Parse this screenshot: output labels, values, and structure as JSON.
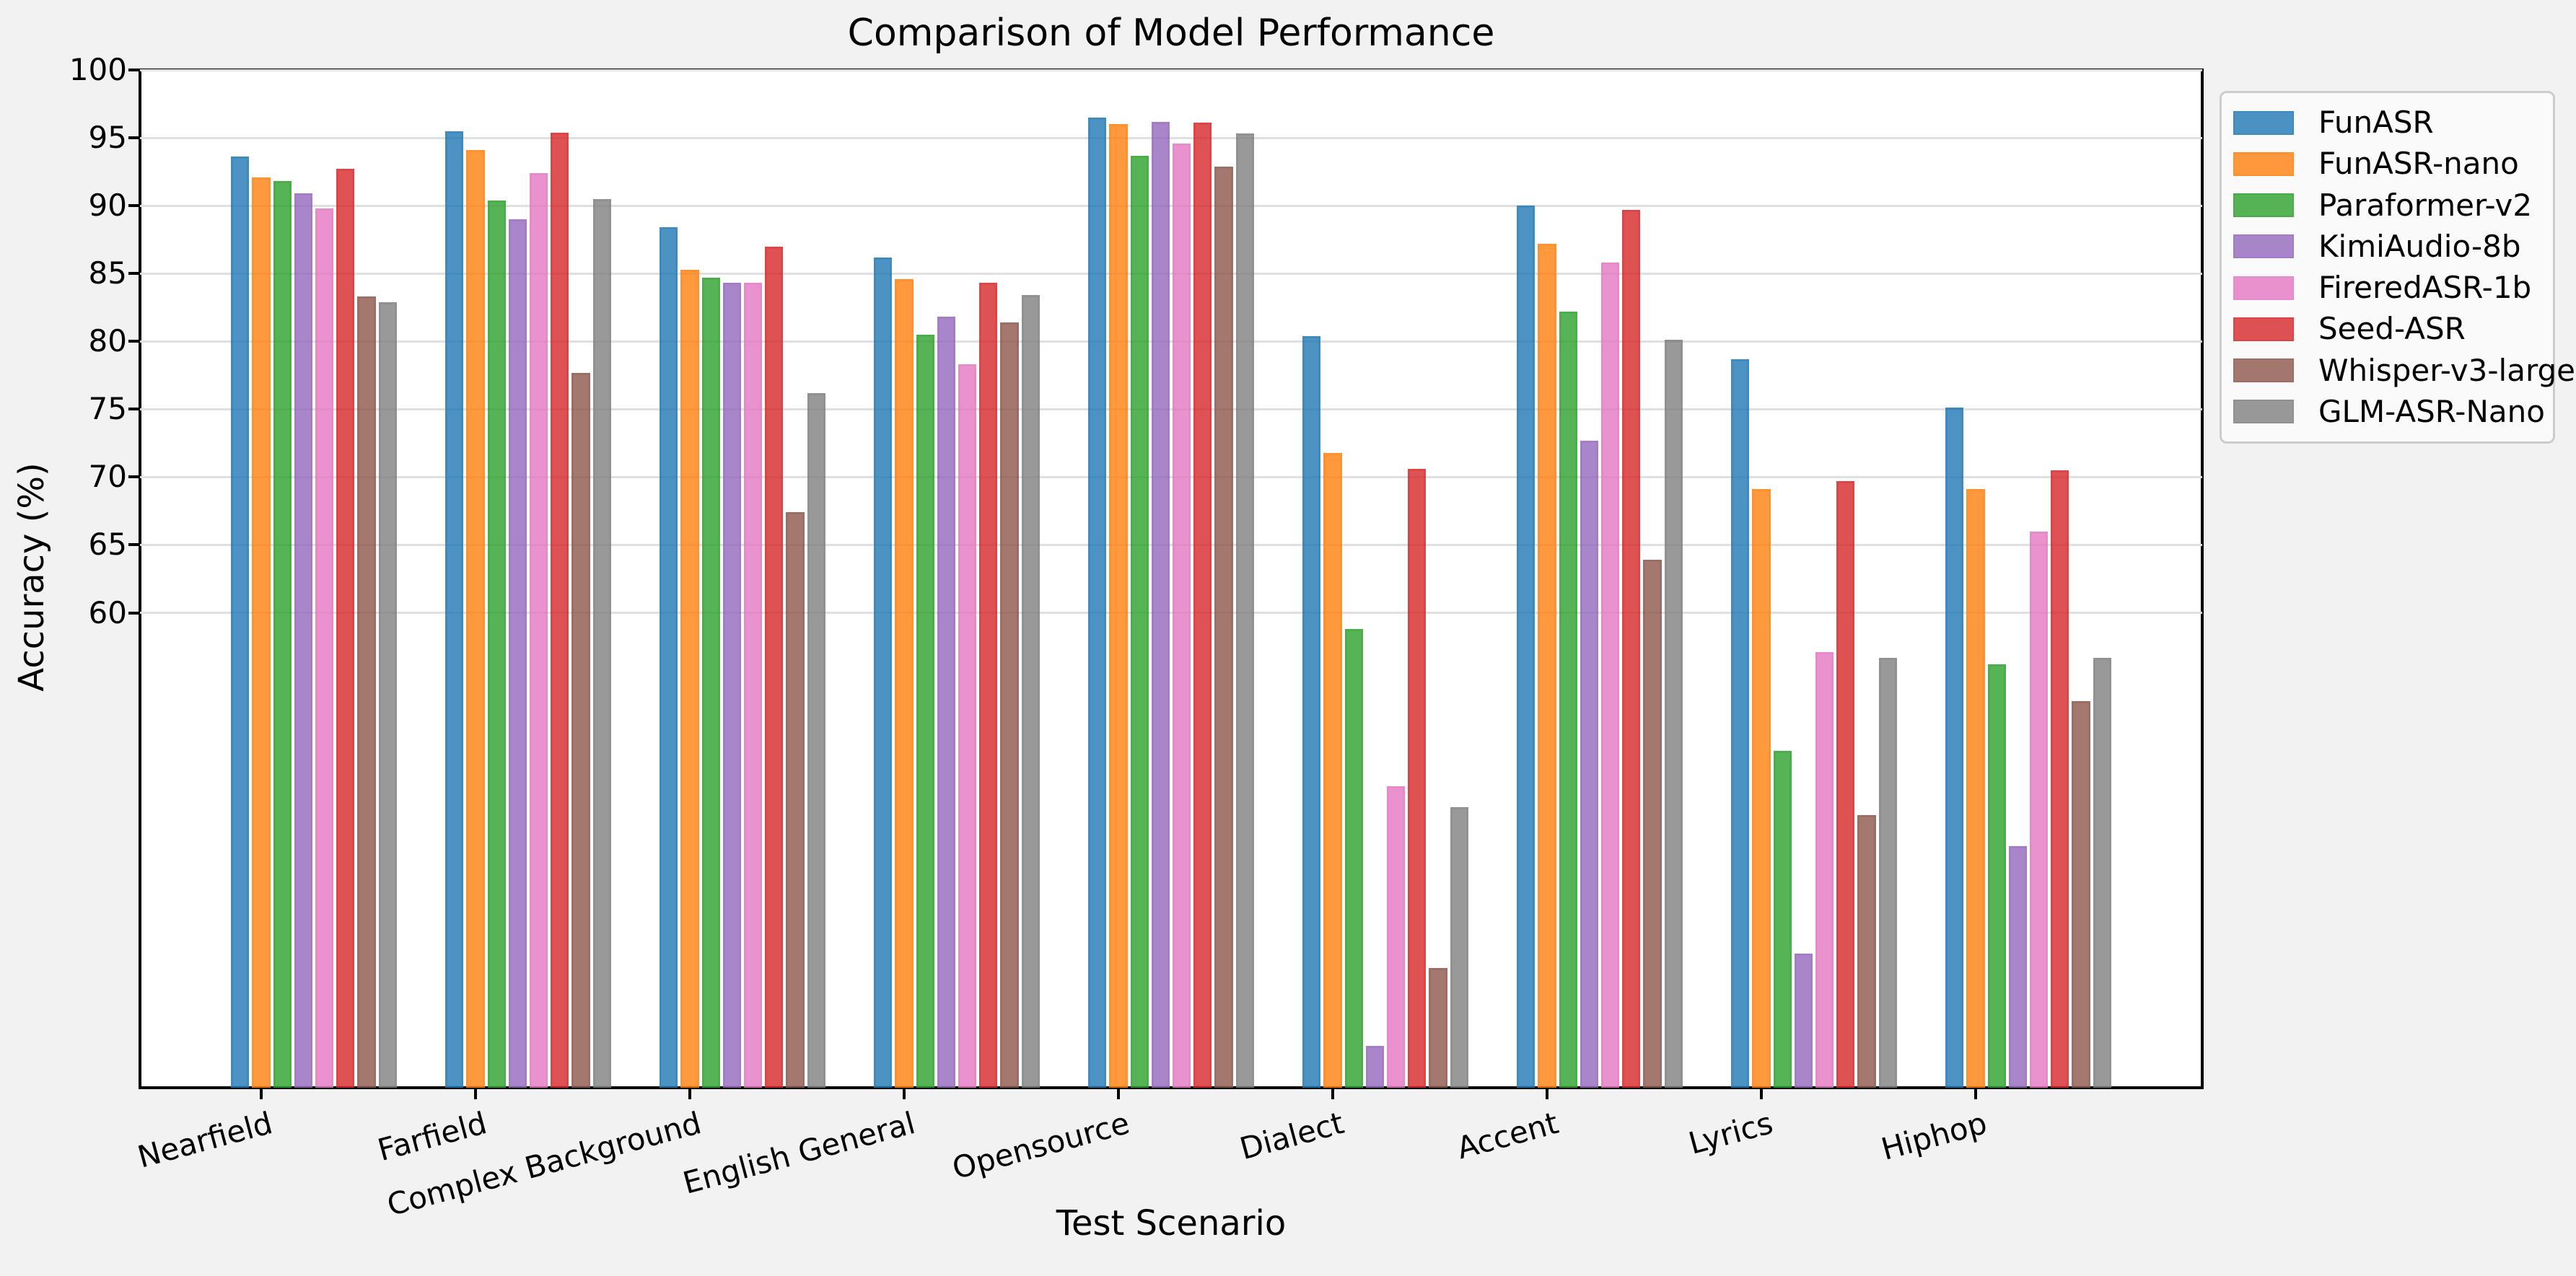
{
  "chart_data": {
    "type": "bar",
    "title": "Comparison of Model Performance",
    "xlabel": "Test Scenario",
    "ylabel": "Accuracy (%)",
    "categories": [
      "Nearfield",
      "Farfield",
      "Complex Background",
      "English General",
      "Opensource",
      "Dialect",
      "Accent",
      "Lyrics",
      "Hiphop"
    ],
    "series": [
      {
        "name": "FunASR",
        "color": "#1f77b4",
        "values": [
          93.6,
          95.5,
          88.4,
          86.2,
          96.5,
          80.4,
          90.0,
          78.7,
          75.1
        ]
      },
      {
        "name": "FunASR-nano",
        "color": "#ff7f0e",
        "values": [
          92.1,
          94.1,
          85.3,
          84.6,
          96.0,
          71.8,
          87.2,
          69.1,
          69.1
        ]
      },
      {
        "name": "Paraformer-v2",
        "color": "#2ca02c",
        "values": [
          91.8,
          90.4,
          84.7,
          80.5,
          93.7,
          58.8,
          82.2,
          49.8,
          56.2
        ]
      },
      {
        "name": "KimiAudio-8b",
        "color": "#9467bd",
        "values": [
          90.9,
          89.0,
          84.3,
          81.8,
          96.2,
          28.1,
          72.7,
          34.9,
          42.8
        ]
      },
      {
        "name": "FireredASR-1b",
        "color": "#e377c2",
        "values": [
          89.8,
          92.4,
          84.3,
          78.3,
          94.6,
          47.2,
          85.8,
          57.1,
          66.0
        ]
      },
      {
        "name": "Seed-ASR",
        "color": "#d62728",
        "values": [
          92.7,
          95.4,
          87.0,
          84.3,
          96.1,
          70.6,
          89.7,
          69.7,
          70.5
        ]
      },
      {
        "name": "Whisper-v3-large",
        "color": "#8c564b",
        "values": [
          83.3,
          77.7,
          67.4,
          81.4,
          92.9,
          33.8,
          63.9,
          45.1,
          53.5
        ]
      },
      {
        "name": "GLM-ASR-Nano",
        "color": "#7f7f7f",
        "values": [
          82.9,
          90.5,
          76.2,
          83.4,
          95.3,
          45.7,
          80.1,
          56.7,
          56.7
        ]
      }
    ],
    "ylim": [
      25,
      100
    ],
    "yticks": [
      60,
      65,
      70,
      75,
      80,
      85,
      90,
      95,
      100
    ],
    "bar_alpha": 0.8,
    "grid": "horizontal",
    "legend_position": "outside-upper-right",
    "x_tick_rotation_deg": 15
  },
  "colors": {
    "figure_bg": "#f2f2f2",
    "plot_bg": "#ffffff",
    "grid": "#e0e0e0",
    "spine": "#000000",
    "legend_bg": "#fafafa",
    "legend_border": "#cccccc",
    "text": "#000000"
  }
}
